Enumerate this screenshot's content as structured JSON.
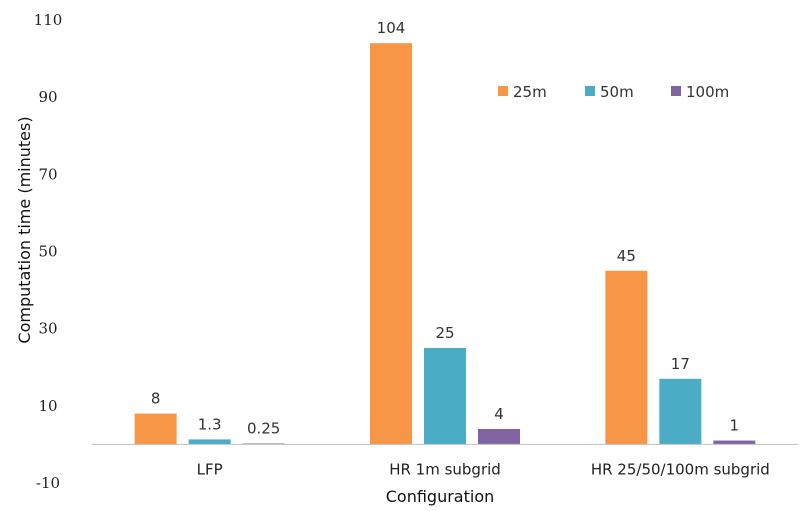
{
  "chart_data": {
    "type": "bar",
    "title": "",
    "xlabel": "Configuration",
    "ylabel": "Computation time (minutes)",
    "ylim": [
      -10,
      110
    ],
    "yticks": [
      -10,
      10,
      30,
      50,
      70,
      90,
      110
    ],
    "categories": [
      "LFP",
      "HR 1m subgrid",
      "HR 25/50/100m subgrid"
    ],
    "series": [
      {
        "name": "25m",
        "color": "#F79646",
        "values": [
          8,
          104,
          45
        ],
        "labels": [
          "8",
          "104",
          "45"
        ]
      },
      {
        "name": "50m",
        "color": "#4BACC6",
        "values": [
          1.3,
          25,
          17
        ],
        "labels": [
          "1.3",
          "25",
          "17"
        ]
      },
      {
        "name": "100m",
        "color": "#8064A2",
        "values": [
          0.25,
          4,
          1
        ],
        "labels": [
          "0.25",
          "4",
          "1"
        ]
      }
    ],
    "grid": false,
    "legend": "top-right"
  }
}
